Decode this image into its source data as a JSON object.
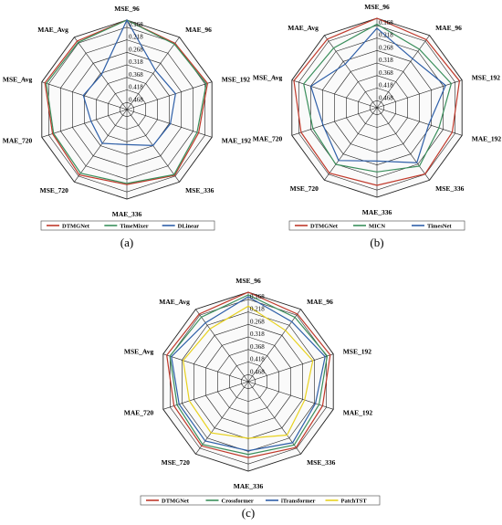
{
  "chart_data": [
    {
      "type": "radar",
      "panel_label": "(a)",
      "axes": [
        "MSE_96",
        "MAE_96",
        "MSE_192",
        "MAE_192",
        "MSE_336",
        "MAE_336",
        "MSE_720",
        "MAE_720",
        "MSE_Avg",
        "MAE_Avg"
      ],
      "ticks": [
        "0.168",
        "0.218",
        "0.268",
        "0.318",
        "0.368",
        "0.418",
        "0.468"
      ],
      "r_range": [
        0.168,
        0.5
      ],
      "grid": true,
      "legend_position": "bottom",
      "series": [
        {
          "name": "DTMGNet",
          "color": "#c0392b",
          "values": [
            0.168,
            0.196,
            0.185,
            0.22,
            0.198,
            0.222,
            0.2,
            0.21,
            0.18,
            0.186
          ]
        },
        {
          "name": "TimeMixer",
          "color": "#3a8f5c",
          "values": [
            0.168,
            0.2,
            0.19,
            0.226,
            0.202,
            0.226,
            0.208,
            0.214,
            0.186,
            0.192
          ]
        },
        {
          "name": "DLinear",
          "color": "#2e5fa8",
          "values": [
            0.168,
            0.32,
            0.31,
            0.33,
            0.335,
            0.37,
            0.345,
            0.36,
            0.33,
            0.34
          ]
        }
      ]
    },
    {
      "type": "radar",
      "panel_label": "(b)",
      "axes": [
        "MSE_96",
        "MAE_96",
        "MSE_192",
        "MAE_192",
        "MSE_336",
        "MAE_336",
        "MSE_720",
        "MAE_720",
        "MSE_Avg",
        "MAE_Avg"
      ],
      "ticks": [
        "0.168",
        "0.218",
        "0.268",
        "0.318",
        "0.368",
        "0.418",
        "0.468"
      ],
      "r_range": [
        0.168,
        0.5
      ],
      "grid": true,
      "legend_position": "bottom",
      "series": [
        {
          "name": "DTMGNet",
          "color": "#c0392b",
          "values": [
            0.168,
            0.188,
            0.178,
            0.206,
            0.196,
            0.212,
            0.2,
            0.204,
            0.176,
            0.186
          ]
        },
        {
          "name": "MICN",
          "color": "#3a8f5c",
          "values": [
            0.19,
            0.232,
            0.21,
            0.258,
            0.232,
            0.262,
            0.24,
            0.25,
            0.214,
            0.226
          ]
        },
        {
          "name": "TimesNet",
          "color": "#2e5fa8",
          "values": [
            0.205,
            0.275,
            0.232,
            0.298,
            0.248,
            0.302,
            0.258,
            0.29,
            0.242,
            0.3
          ]
        }
      ]
    },
    {
      "type": "radar",
      "panel_label": "(c)",
      "axes": [
        "MSE_96",
        "MAE_96",
        "MSE_192",
        "MAE_192",
        "MSE_336",
        "MAE_336",
        "MSE_720",
        "MAE_720",
        "MSE_Avg",
        "MAE_Avg"
      ],
      "ticks": [
        "0.168",
        "0.218",
        "0.268",
        "0.318",
        "0.368",
        "0.418",
        "0.468"
      ],
      "r_range": [
        0.168,
        0.5
      ],
      "grid": true,
      "legend_position": "bottom",
      "series": [
        {
          "name": "DTMGNet",
          "color": "#c0392b",
          "values": [
            0.168,
            0.19,
            0.18,
            0.21,
            0.198,
            0.218,
            0.205,
            0.21,
            0.182,
            0.19
          ]
        },
        {
          "name": "Crossformer",
          "color": "#3a8f5c",
          "values": [
            0.178,
            0.205,
            0.192,
            0.224,
            0.21,
            0.23,
            0.212,
            0.222,
            0.194,
            0.204
          ]
        },
        {
          "name": "iTransformer",
          "color": "#2e5fa8",
          "values": [
            0.185,
            0.225,
            0.2,
            0.238,
            0.22,
            0.244,
            0.228,
            0.23,
            0.2,
            0.23
          ]
        },
        {
          "name": "PatchTST",
          "color": "#e8d21f",
          "values": [
            0.22,
            0.265,
            0.248,
            0.28,
            0.255,
            0.29,
            0.265,
            0.27,
            0.246,
            0.258
          ]
        }
      ]
    }
  ]
}
